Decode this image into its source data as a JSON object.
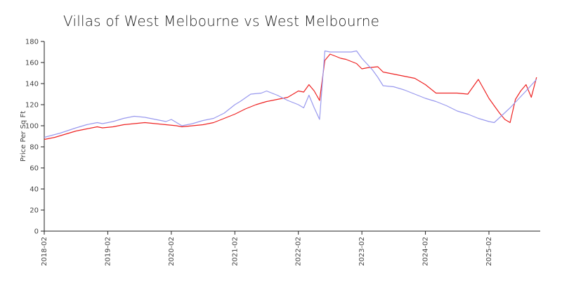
{
  "chart_data": {
    "type": "line",
    "title": "Villas of West Melbourne vs West Melbourne",
    "ylabel": "Price Per Sq Ft",
    "xlabel": "",
    "ylim": [
      0,
      180
    ],
    "yticks": [
      "0",
      "20",
      "40",
      "60",
      "80",
      "100",
      "120",
      "140",
      "160",
      "180"
    ],
    "xlim": [
      "2018-02",
      "2025-09"
    ],
    "xticks": [
      "2018-02",
      "2019-02",
      "2020-02",
      "2021-02",
      "2022-02",
      "2023-02",
      "2024-02",
      "2025-02"
    ],
    "grid": false,
    "legend": "none",
    "series": [
      {
        "color": "#ee2222",
        "points": [
          [
            "2018-02",
            87
          ],
          [
            "2018-04",
            89
          ],
          [
            "2018-06",
            92
          ],
          [
            "2018-08",
            95
          ],
          [
            "2018-10",
            97
          ],
          [
            "2018-12",
            99
          ],
          [
            "2019-01",
            98
          ],
          [
            "2019-03",
            99
          ],
          [
            "2019-05",
            101
          ],
          [
            "2019-07",
            102
          ],
          [
            "2019-09",
            103
          ],
          [
            "2019-11",
            102
          ],
          [
            "2020-01",
            101
          ],
          [
            "2020-03",
            100
          ],
          [
            "2020-04",
            99
          ],
          [
            "2020-06",
            100
          ],
          [
            "2020-08",
            101
          ],
          [
            "2020-10",
            103
          ],
          [
            "2020-12",
            107
          ],
          [
            "2021-02",
            111
          ],
          [
            "2021-04",
            116
          ],
          [
            "2021-06",
            120
          ],
          [
            "2021-08",
            123
          ],
          [
            "2021-10",
            125
          ],
          [
            "2021-12",
            127
          ],
          [
            "2022-01",
            130
          ],
          [
            "2022-02",
            133
          ],
          [
            "2022-03",
            132
          ],
          [
            "2022-04",
            139
          ],
          [
            "2022-05",
            133
          ],
          [
            "2022-06",
            124
          ],
          [
            "2022-07",
            162
          ],
          [
            "2022-08",
            168
          ],
          [
            "2022-09",
            166
          ],
          [
            "2022-10",
            164
          ],
          [
            "2022-11",
            163
          ],
          [
            "2022-12",
            161
          ],
          [
            "2023-01",
            159
          ],
          [
            "2023-02",
            154
          ],
          [
            "2023-03",
            155
          ],
          [
            "2023-05",
            156
          ],
          [
            "2023-06",
            151
          ],
          [
            "2023-08",
            149
          ],
          [
            "2023-10",
            147
          ],
          [
            "2023-12",
            145
          ],
          [
            "2024-02",
            139
          ],
          [
            "2024-04",
            131
          ],
          [
            "2024-06",
            131
          ],
          [
            "2024-08",
            131
          ],
          [
            "2024-10",
            130
          ],
          [
            "2024-11",
            137
          ],
          [
            "2024-12",
            144
          ],
          [
            "2025-01",
            135
          ],
          [
            "2025-02",
            126
          ],
          [
            "2025-03",
            119
          ],
          [
            "2025-04",
            112
          ],
          [
            "2025-05",
            106
          ],
          [
            "2025-06",
            103
          ],
          [
            "2025-07",
            125
          ],
          [
            "2025-08",
            133
          ],
          [
            "2025-09",
            139
          ],
          [
            "2025-10",
            127
          ],
          [
            "2025-11",
            146
          ]
        ]
      },
      {
        "color": "#9999ee",
        "points": [
          [
            "2018-02",
            89
          ],
          [
            "2018-05",
            93
          ],
          [
            "2018-08",
            98
          ],
          [
            "2018-10",
            101
          ],
          [
            "2018-12",
            103
          ],
          [
            "2019-01",
            102
          ],
          [
            "2019-03",
            104
          ],
          [
            "2019-05",
            107
          ],
          [
            "2019-07",
            109
          ],
          [
            "2019-09",
            108
          ],
          [
            "2019-11",
            106
          ],
          [
            "2020-01",
            104
          ],
          [
            "2020-02",
            106
          ],
          [
            "2020-04",
            100
          ],
          [
            "2020-06",
            102
          ],
          [
            "2020-08",
            105
          ],
          [
            "2020-10",
            107
          ],
          [
            "2020-12",
            112
          ],
          [
            "2021-02",
            120
          ],
          [
            "2021-03",
            123
          ],
          [
            "2021-05",
            130
          ],
          [
            "2021-07",
            131
          ],
          [
            "2021-08",
            133
          ],
          [
            "2021-10",
            129
          ],
          [
            "2021-12",
            124
          ],
          [
            "2022-02",
            120
          ],
          [
            "2022-03",
            117
          ],
          [
            "2022-04",
            129
          ],
          [
            "2022-05",
            117
          ],
          [
            "2022-06",
            106
          ],
          [
            "2022-07",
            171
          ],
          [
            "2022-08",
            170
          ],
          [
            "2022-12",
            170
          ],
          [
            "2023-01",
            171
          ],
          [
            "2023-02",
            164
          ],
          [
            "2023-04",
            153
          ],
          [
            "2023-05",
            146
          ],
          [
            "2023-06",
            138
          ],
          [
            "2023-08",
            137
          ],
          [
            "2023-10",
            134
          ],
          [
            "2023-12",
            130
          ],
          [
            "2024-02",
            126
          ],
          [
            "2024-04",
            123
          ],
          [
            "2024-06",
            119
          ],
          [
            "2024-08",
            114
          ],
          [
            "2024-10",
            111
          ],
          [
            "2024-12",
            107
          ],
          [
            "2025-02",
            104
          ],
          [
            "2025-03",
            103
          ],
          [
            "2025-06",
            117
          ],
          [
            "2025-09",
            133
          ],
          [
            "2025-11",
            144
          ]
        ]
      }
    ]
  }
}
